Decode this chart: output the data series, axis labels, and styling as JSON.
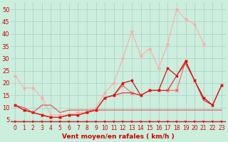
{
  "background_color": "#cceedd",
  "grid_color": "#aacccc",
  "xlabel": "Vent moyen/en rafales ( km/h )",
  "xlabel_color": "#cc0000",
  "xlabel_fontsize": 6.5,
  "xtick_color": "#cc0000",
  "ytick_color": "#cc0000",
  "ytick_fontsize": 6,
  "xtick_fontsize": 5.5,
  "xlim": [
    -0.5,
    23.5
  ],
  "ylim": [
    3,
    53
  ],
  "yticks": [
    5,
    10,
    15,
    20,
    25,
    30,
    35,
    40,
    45,
    50
  ],
  "xticks": [
    0,
    1,
    2,
    3,
    4,
    5,
    6,
    7,
    8,
    9,
    10,
    11,
    12,
    13,
    14,
    15,
    16,
    17,
    18,
    19,
    20,
    21,
    22,
    23
  ],
  "lines": [
    {
      "x": [
        0,
        1,
        2,
        3,
        4,
        5,
        6,
        7,
        8,
        9,
        10,
        11,
        12,
        13,
        14,
        15,
        16,
        17,
        18,
        19,
        20,
        21
      ],
      "y": [
        23,
        18,
        18,
        14,
        7,
        7,
        7,
        8,
        8,
        10,
        16,
        20,
        30,
        41,
        31,
        34,
        26,
        36,
        50,
        46,
        44,
        36
      ],
      "color": "#ffaaaa",
      "linewidth": 0.8,
      "marker": "D",
      "markersize": 1.8
    },
    {
      "x": [
        0,
        1,
        2,
        3,
        4,
        5,
        6,
        7,
        8,
        9,
        10,
        11,
        12,
        13,
        14,
        15,
        16,
        17,
        18,
        19,
        20,
        21,
        22,
        23
      ],
      "y": [
        11,
        9,
        8,
        7,
        6,
        6,
        7,
        7,
        8,
        9,
        14,
        15,
        19,
        16,
        15,
        17,
        17,
        17,
        17,
        29,
        21,
        14,
        11,
        19
      ],
      "color": "#ff6666",
      "linewidth": 0.8,
      "marker": "x",
      "markersize": 2.5
    },
    {
      "x": [
        0,
        1,
        2,
        3,
        4,
        5,
        6,
        7,
        8,
        9,
        10,
        11,
        12,
        13,
        14,
        15,
        16,
        17,
        18,
        19,
        20,
        21,
        22,
        23
      ],
      "y": [
        11,
        9,
        8,
        7,
        6,
        6,
        7,
        7,
        8,
        9,
        14,
        15,
        20,
        21,
        15,
        17,
        17,
        26,
        23,
        29,
        21,
        14,
        11,
        19
      ],
      "color": "#cc0000",
      "linewidth": 0.8,
      "marker": "s",
      "markersize": 1.5
    },
    {
      "x": [
        0,
        1,
        2,
        3,
        4,
        5,
        6,
        7,
        8,
        9,
        10,
        11,
        12,
        13,
        14,
        15,
        16,
        17,
        18,
        19,
        20,
        21,
        22,
        23
      ],
      "y": [
        11,
        9,
        8,
        7,
        6,
        6,
        7,
        7,
        8,
        9,
        14,
        15,
        16,
        16,
        15,
        17,
        17,
        17,
        23,
        28,
        21,
        13,
        11,
        19
      ],
      "color": "#dd2222",
      "linewidth": 0.8,
      "marker": null,
      "markersize": 1.5
    },
    {
      "x": [
        0,
        1,
        2,
        3,
        4,
        5,
        6,
        7,
        8,
        9,
        10,
        11,
        12,
        13,
        14,
        15,
        16,
        17,
        18,
        19,
        20,
        21,
        22,
        23
      ],
      "y": [
        11,
        10,
        8,
        11,
        11,
        8,
        9,
        9,
        9,
        9,
        9,
        9,
        9,
        9,
        9,
        9,
        9,
        9,
        9,
        9,
        9,
        9,
        9,
        9
      ],
      "color": "#ee3333",
      "linewidth": 0.7,
      "marker": null,
      "markersize": 1.5
    }
  ],
  "arrow_color": "#cc0000",
  "redline_y": 4.5
}
